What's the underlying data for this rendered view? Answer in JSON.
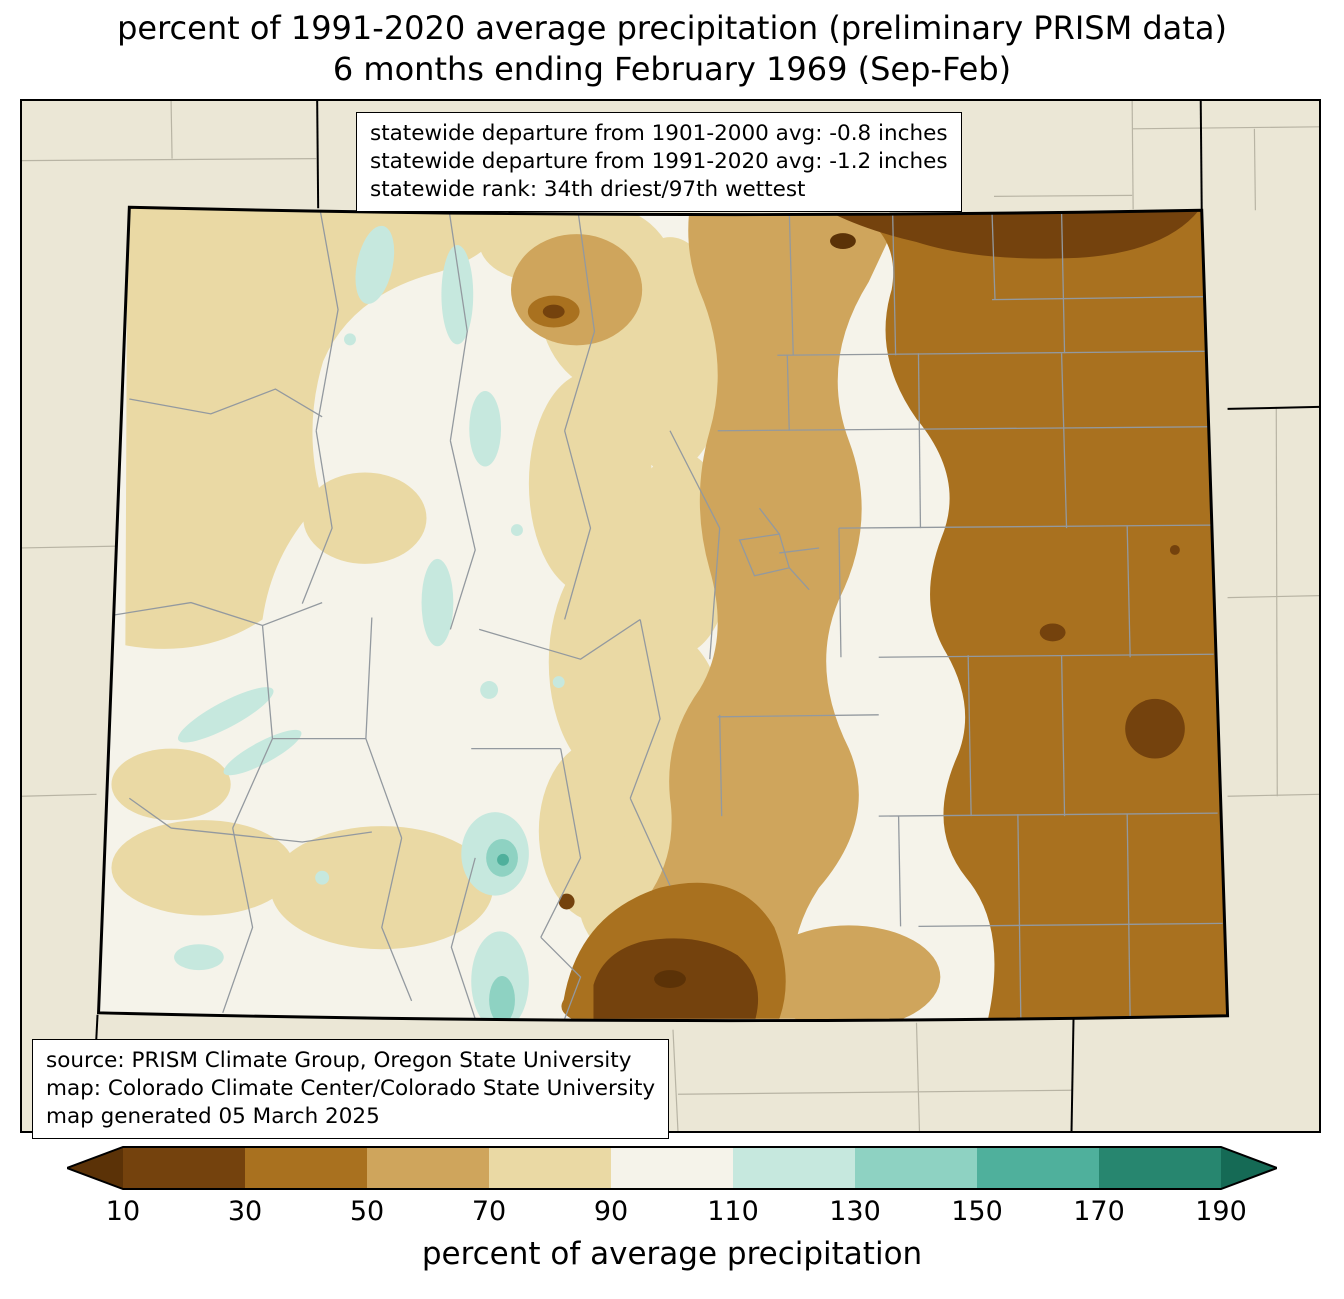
{
  "title": {
    "line1": "percent of 1991-2020 average precipitation (preliminary PRISM data)",
    "line2": "6 months ending February 1969 (Sep-Feb)"
  },
  "stats_box": {
    "line1": "statewide departure from 1901-2000 avg: -0.8 inches",
    "line2": "statewide departure from 1991-2020 avg: -1.2 inches",
    "line3": "statewide rank: 34th driest/97th wettest"
  },
  "source_box": {
    "line1": "source: PRISM Climate Group, Oregon State University",
    "line2": "map: Colorado Climate Center/Colorado State University",
    "line3": "map generated 05 March 2025"
  },
  "colorbar": {
    "label": "percent of average precipitation",
    "ticks": [
      "10",
      "30",
      "50",
      "70",
      "90",
      "110",
      "130",
      "150",
      "170",
      "190"
    ],
    "segments": [
      {
        "key": "lt10",
        "label": "<10",
        "color": "#5b3207",
        "arrow": true
      },
      {
        "key": "s10_30",
        "label": "10-30",
        "color": "#74420d"
      },
      {
        "key": "s30_50",
        "label": "30-50",
        "color": "#a9711f"
      },
      {
        "key": "s50_70",
        "label": "50-70",
        "color": "#cfa55c"
      },
      {
        "key": "s70_90",
        "label": "70-90",
        "color": "#ead9a4"
      },
      {
        "key": "s90_110",
        "label": "90-110",
        "color": "#f5f3ea"
      },
      {
        "key": "s110_130",
        "label": "110-130",
        "color": "#c6e8de"
      },
      {
        "key": "s130_150",
        "label": "130-150",
        "color": "#8ed2c2"
      },
      {
        "key": "s150_170",
        "label": "150-170",
        "color": "#4fb09c"
      },
      {
        "key": "s170_190",
        "label": "170-190",
        "color": "#27866f"
      },
      {
        "key": "gt190",
        "label": ">190",
        "color": "#156a55",
        "arrow": true
      }
    ]
  },
  "map": {
    "colors": {
      "land": "#ebe7d6",
      "state_border": "#000000",
      "county_line": "#93999f",
      "neighbor_line": "#b8b4a4"
    }
  }
}
